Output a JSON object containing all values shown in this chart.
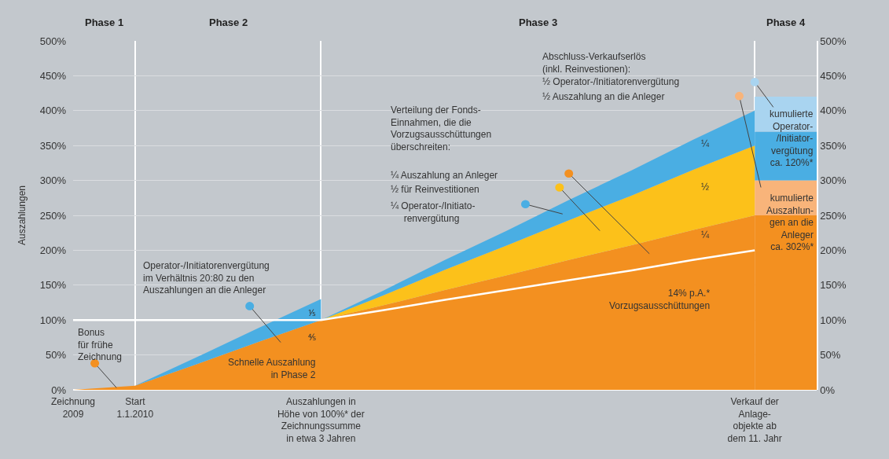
{
  "chart_data": {
    "type": "area",
    "stacked": true,
    "ylabel": "Auszahlungen",
    "categories": [
      "Zeichnung\n2009",
      "Start\n1.1.2010",
      null,
      null,
      "Auszahlungen in\nHöhe von 100%* der\nZeichnungssumme\nin etwa 3 Jahren",
      null,
      null,
      null,
      null,
      null,
      null,
      "Verkauf der\nAnlage-\nobjekte ab\ndem 11. Jahr",
      null
    ],
    "ylim": [
      0,
      500
    ],
    "yticks": [
      {
        "value": 0,
        "label": "0%"
      },
      {
        "value": 50,
        "label": "50%"
      },
      {
        "value": 100,
        "label": "100%"
      },
      {
        "value": 150,
        "label": "150%"
      },
      {
        "value": 200,
        "label": "200%"
      },
      {
        "value": 250,
        "label": "250%"
      },
      {
        "value": 300,
        "label": "300%"
      },
      {
        "value": 350,
        "label": "350%"
      },
      {
        "value": 400,
        "label": "400%"
      },
      {
        "value": 450,
        "label": "450%"
      },
      {
        "value": 500,
        "label": "500%"
      }
    ],
    "y2lim": [
      0,
      500
    ],
    "y2ticks": [
      {
        "value": 0,
        "label": "0%"
      },
      {
        "value": 50,
        "label": "50%"
      },
      {
        "value": 100,
        "label": "100%"
      },
      {
        "value": 150,
        "label": "150%"
      },
      {
        "value": 200,
        "label": "200%"
      },
      {
        "value": 250,
        "label": "250%"
      },
      {
        "value": 300,
        "label": "300%"
      },
      {
        "value": 350,
        "label": "350%"
      },
      {
        "value": 400,
        "label": "400%"
      },
      {
        "value": 450,
        "label": "450%"
      },
      {
        "value": 500,
        "label": "500%"
      }
    ],
    "series": [
      {
        "color": "#f39020",
        "values": [
          0,
          6,
          37,
          69,
          100,
          121,
          143,
          164,
          186,
          207,
          229,
          250,
          null
        ]
      },
      {
        "color": "#fcc11a",
        "values": [
          null,
          null,
          null,
          null,
          0,
          14,
          29,
          43,
          57,
          71,
          86,
          100,
          null
        ]
      },
      {
        "color": "#4aaee3",
        "values": [
          null,
          null,
          null,
          null,
          0,
          7,
          14,
          21,
          29,
          36,
          43,
          50,
          null
        ]
      },
      {
        "color": "#4aaee3",
        "values": [
          null,
          0,
          10,
          20,
          30,
          null,
          null,
          null,
          null,
          null,
          null,
          null,
          null
        ]
      },
      {
        "type": "bar",
        "color": "#f39020",
        "values": [
          null,
          null,
          null,
          null,
          null,
          null,
          null,
          null,
          null,
          null,
          null,
          null,
          250
        ]
      },
      {
        "type": "bar",
        "color": "#f8b47a",
        "values": [
          null,
          null,
          null,
          null,
          null,
          null,
          null,
          null,
          null,
          null,
          null,
          null,
          50
        ]
      },
      {
        "type": "bar",
        "color": "#4aaee3",
        "values": [
          null,
          null,
          null,
          null,
          null,
          null,
          null,
          null,
          null,
          null,
          null,
          null,
          70
        ]
      },
      {
        "type": "bar",
        "color": "#a9d4f0",
        "values": [
          null,
          null,
          null,
          null,
          null,
          null,
          null,
          null,
          null,
          null,
          null,
          null,
          50
        ]
      },
      {
        "type": "line",
        "color": "#ffffff",
        "values": [
          100,
          100,
          100,
          100,
          100,
          114,
          129,
          143,
          157,
          171,
          186,
          200,
          null
        ]
      }
    ],
    "annotations": [
      "Phase 1",
      "Phase 2",
      "Phase 3",
      "Phase 4",
      "Bonus\nfür frühe\nZeichnung",
      "Operator-/Initiatorenvergütung\nim Verhältnis 20:80 zu den\nAuszahlungen an die Anleger",
      "Verteilung der Fonds-\nEinnahmen, die die\nVorzugsausschüttungen\nüberschreiten:",
      "¼ Auszahlung an Anleger",
      "½ für Reinvestitionen",
      "¼ Operator-/Initiato-\n     renvergütung",
      "Abschluss-Verkaufserlös\n(inkl. Reinvestionen):",
      "½ Operator-/Initiatorenvergütung",
      "½ Auszahlung an die Anleger",
      "⅕",
      "⅘",
      "Schnelle Auszahlung\nin Phase 2",
      "¼",
      "½",
      "¼",
      "14% p.A.*\nVorzugsausschüttungen",
      "kumulierte\nOperator-\n/Initiator-\nvergütung\nca. 120%*",
      "kumulierte\nAuszahlun-\ngen an die\nAnleger\nca. 302%*"
    ],
    "grid": true
  }
}
